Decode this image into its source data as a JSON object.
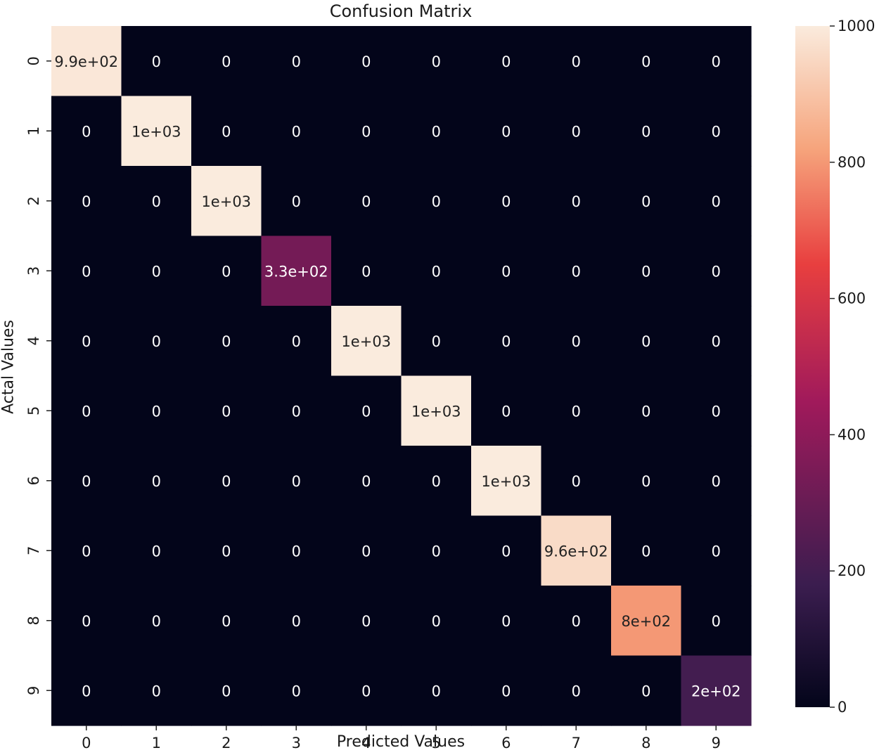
{
  "chart_data": {
    "type": "heatmap",
    "title": "Confusion Matrix",
    "xlabel": "Predicted Values",
    "ylabel": "Actal Values",
    "x_categories": [
      "0",
      "1",
      "2",
      "3",
      "4",
      "5",
      "6",
      "7",
      "8",
      "9"
    ],
    "y_categories": [
      "0",
      "1",
      "2",
      "3",
      "4",
      "5",
      "6",
      "7",
      "8",
      "9"
    ],
    "values": [
      [
        990,
        0,
        0,
        0,
        0,
        0,
        0,
        0,
        0,
        0
      ],
      [
        0,
        1000,
        0,
        0,
        0,
        0,
        0,
        0,
        0,
        0
      ],
      [
        0,
        0,
        1000,
        0,
        0,
        0,
        0,
        0,
        0,
        0
      ],
      [
        0,
        0,
        0,
        330,
        0,
        0,
        0,
        0,
        0,
        0
      ],
      [
        0,
        0,
        0,
        0,
        1000,
        0,
        0,
        0,
        0,
        0
      ],
      [
        0,
        0,
        0,
        0,
        0,
        1000,
        0,
        0,
        0,
        0
      ],
      [
        0,
        0,
        0,
        0,
        0,
        0,
        1000,
        0,
        0,
        0
      ],
      [
        0,
        0,
        0,
        0,
        0,
        0,
        0,
        960,
        0,
        0
      ],
      [
        0,
        0,
        0,
        0,
        0,
        0,
        0,
        0,
        800,
        0
      ],
      [
        0,
        0,
        0,
        0,
        0,
        0,
        0,
        0,
        0,
        200
      ]
    ],
    "annotations": [
      [
        "9.9e+02",
        "0",
        "0",
        "0",
        "0",
        "0",
        "0",
        "0",
        "0",
        "0"
      ],
      [
        "0",
        "1e+03",
        "0",
        "0",
        "0",
        "0",
        "0",
        "0",
        "0",
        "0"
      ],
      [
        "0",
        "0",
        "1e+03",
        "0",
        "0",
        "0",
        "0",
        "0",
        "0",
        "0"
      ],
      [
        "0",
        "0",
        "0",
        "3.3e+02",
        "0",
        "0",
        "0",
        "0",
        "0",
        "0"
      ],
      [
        "0",
        "0",
        "0",
        "0",
        "1e+03",
        "0",
        "0",
        "0",
        "0",
        "0"
      ],
      [
        "0",
        "0",
        "0",
        "0",
        "0",
        "1e+03",
        "0",
        "0",
        "0",
        "0"
      ],
      [
        "0",
        "0",
        "0",
        "0",
        "0",
        "0",
        "1e+03",
        "0",
        "0",
        "0"
      ],
      [
        "0",
        "0",
        "0",
        "0",
        "0",
        "0",
        "0",
        "9.6e+02",
        "0",
        "0"
      ],
      [
        "0",
        "0",
        "0",
        "0",
        "0",
        "0",
        "0",
        "0",
        "8e+02",
        "0"
      ],
      [
        "0",
        "0",
        "0",
        "0",
        "0",
        "0",
        "0",
        "0",
        "0",
        "2e+02"
      ]
    ],
    "colorbar": {
      "range": [
        0,
        1000
      ],
      "ticks": [
        0,
        200,
        400,
        600,
        800,
        1000
      ],
      "tick_labels": [
        "0",
        "200",
        "400",
        "600",
        "800",
        "1000"
      ],
      "colormap": "rocket"
    },
    "colors": {
      "low": "#03051a",
      "mid_low": "#3b1d4f",
      "mid": "#a11a5b",
      "mid_high": "#e83f3f",
      "high_mid": "#f6a47c",
      "high": "#faebdd"
    },
    "grid": false,
    "legend": "none"
  }
}
